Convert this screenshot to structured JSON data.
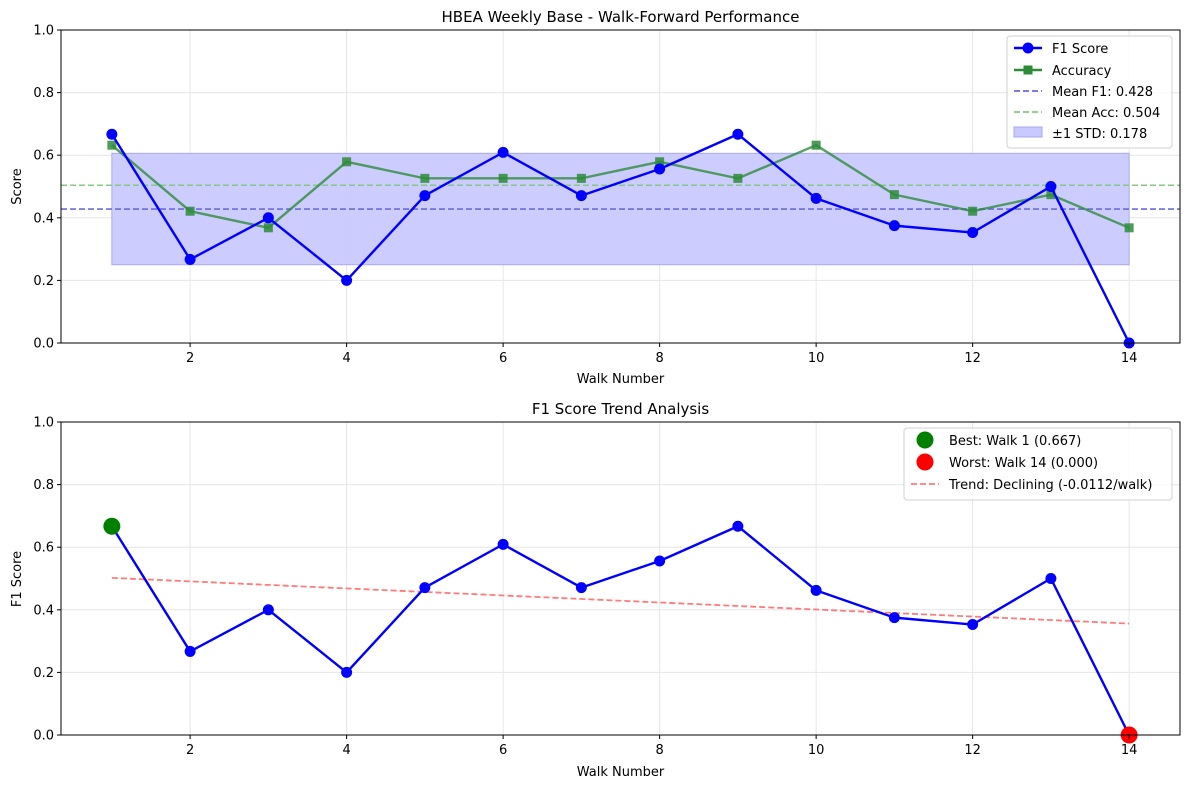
{
  "chart_data": [
    {
      "type": "line",
      "title": "HBEA Weekly Base - Walk-Forward Performance",
      "xlabel": "Walk Number",
      "ylabel": "Score",
      "xlim": [
        0.35,
        14.65
      ],
      "ylim": [
        0,
        1
      ],
      "xticks": [
        "2",
        "4",
        "6",
        "8",
        "10",
        "12",
        "14"
      ],
      "xtick_values": [
        2,
        4,
        6,
        8,
        10,
        12,
        14
      ],
      "yticks": [
        "0.0",
        "0.2",
        "0.4",
        "0.6",
        "0.8",
        "1.0"
      ],
      "ytick_values": [
        0,
        0.2,
        0.4,
        0.6,
        0.8,
        1.0
      ],
      "grid": true,
      "legend_position": "top-right",
      "x": [
        1,
        2,
        3,
        4,
        5,
        6,
        7,
        8,
        9,
        10,
        11,
        12,
        13,
        14
      ],
      "series": [
        {
          "name": "F1 Score",
          "color": "#0000ff",
          "marker": "circle",
          "values": [
            0.667,
            0.267,
            0.4,
            0.2,
            0.471,
            0.609,
            0.471,
            0.556,
            0.667,
            0.462,
            0.375,
            0.353,
            0.5,
            0.0
          ]
        },
        {
          "name": "Accuracy",
          "color": "#2e8b3a",
          "marker": "square",
          "values": [
            0.632,
            0.421,
            0.368,
            0.579,
            0.526,
            0.526,
            0.526,
            0.579,
            0.526,
            0.632,
            0.474,
            0.421,
            0.474,
            0.368
          ]
        }
      ],
      "reference_lines": [
        {
          "name": "Mean F1: 0.428",
          "value": 0.428,
          "color": "#6b6bdc"
        },
        {
          "name": "Mean Acc: 0.504",
          "value": 0.504,
          "color": "#84c884"
        }
      ],
      "band": {
        "name": "±1 STD: 0.178",
        "x_range": [
          1,
          14
        ],
        "low": 0.25,
        "high": 0.606,
        "color": "#c9c9ff"
      },
      "legend": [
        "F1 Score",
        "Accuracy",
        "Mean F1: 0.428",
        "Mean Acc: 0.504",
        "±1 STD: 0.178"
      ]
    },
    {
      "type": "line",
      "title": "F1 Score Trend Analysis",
      "xlabel": "Walk Number",
      "ylabel": "F1 Score",
      "xlim": [
        0.35,
        14.65
      ],
      "ylim": [
        0,
        1
      ],
      "xticks": [
        "2",
        "4",
        "6",
        "8",
        "10",
        "12",
        "14"
      ],
      "xtick_values": [
        2,
        4,
        6,
        8,
        10,
        12,
        14
      ],
      "yticks": [
        "0.0",
        "0.2",
        "0.4",
        "0.6",
        "0.8",
        "1.0"
      ],
      "ytick_values": [
        0,
        0.2,
        0.4,
        0.6,
        0.8,
        1.0
      ],
      "grid": true,
      "legend_position": "top-right",
      "x": [
        1,
        2,
        3,
        4,
        5,
        6,
        7,
        8,
        9,
        10,
        11,
        12,
        13,
        14
      ],
      "series": [
        {
          "color": "#0000ff",
          "marker": "circle",
          "values": [
            0.667,
            0.267,
            0.4,
            0.2,
            0.471,
            0.609,
            0.471,
            0.556,
            0.667,
            0.462,
            0.375,
            0.353,
            0.5,
            0.0
          ]
        }
      ],
      "highlights": [
        {
          "name": "Best: Walk 1 (0.667)",
          "x": 1,
          "y": 0.667,
          "color": "#008000"
        },
        {
          "name": "Worst: Walk 14 (0.000)",
          "x": 14,
          "y": 0.0,
          "color": "#ff0000"
        }
      ],
      "trend": {
        "name": "Trend: Declining (-0.0112/walk)",
        "x": [
          1,
          14
        ],
        "y": [
          0.502,
          0.356
        ],
        "color": "#ff7b7b"
      },
      "legend": [
        "Best: Walk 1 (0.667)",
        "Worst: Walk 14 (0.000)",
        "Trend: Declining (-0.0112/walk)"
      ]
    }
  ]
}
